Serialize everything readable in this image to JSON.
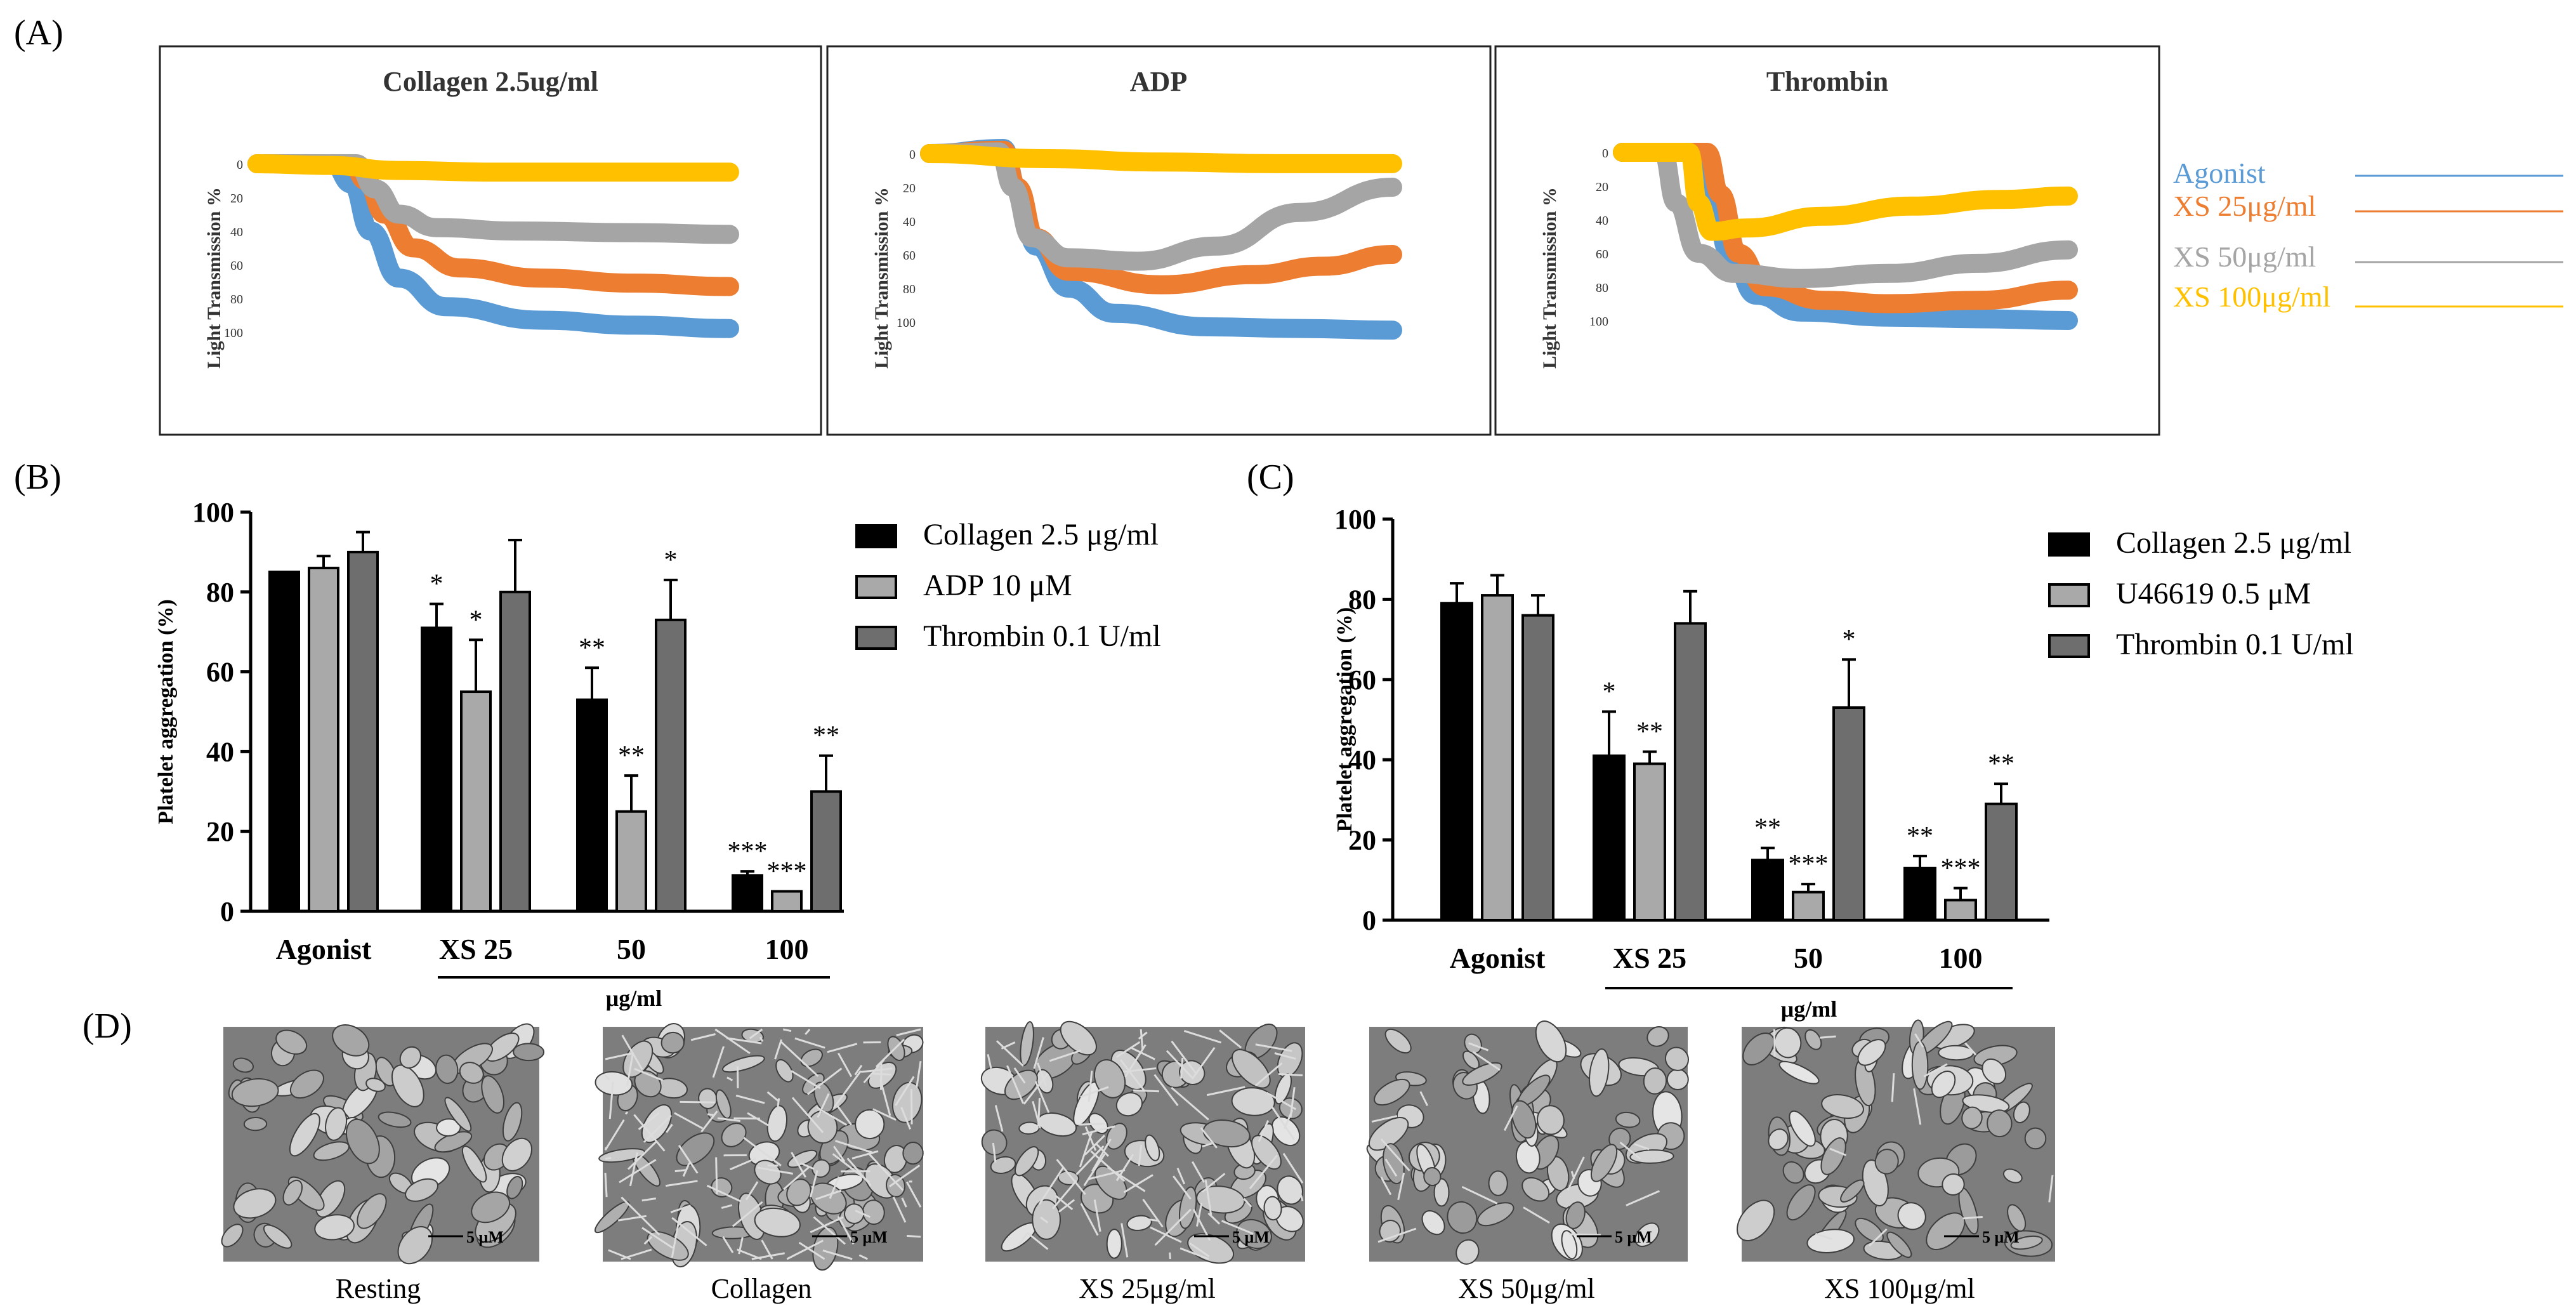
{
  "panel_labels": {
    "a": "(A)",
    "b": "(B)",
    "c": "(C)",
    "d": "(D)"
  },
  "colors": {
    "agonist": "#5B9BD5",
    "xs25": "#ED7D31",
    "xs50": "#A5A5A5",
    "xs100": "#FFC000",
    "bar_black": "#000000",
    "bar_light": "#A9A9A9",
    "bar_dark": "#6E6E6E"
  },
  "chart_data": [
    {
      "type": "line",
      "panel": "A1",
      "title": "Collagen 2.5ug/ml",
      "ylabel": "Light Transmission %",
      "yticks": [
        "0",
        "20",
        "40",
        "60",
        "80",
        "100"
      ],
      "ylim": [
        0,
        130
      ],
      "series": [
        {
          "key": "agonist",
          "points": [
            [
              0,
              0
            ],
            [
              16,
              0
            ],
            [
              20,
              12
            ],
            [
              24,
              40
            ],
            [
              30,
              68
            ],
            [
              40,
              85
            ],
            [
              60,
              93
            ],
            [
              80,
              96
            ],
            [
              100,
              98
            ]
          ]
        },
        {
          "key": "xs25",
          "points": [
            [
              0,
              0
            ],
            [
              20,
              0
            ],
            [
              23,
              10
            ],
            [
              27,
              30
            ],
            [
              33,
              50
            ],
            [
              43,
              62
            ],
            [
              60,
              68
            ],
            [
              80,
              71
            ],
            [
              100,
              73
            ]
          ]
        },
        {
          "key": "xs50",
          "points": [
            [
              0,
              0
            ],
            [
              21,
              0
            ],
            [
              25,
              15
            ],
            [
              30,
              30
            ],
            [
              38,
              38
            ],
            [
              55,
              40
            ],
            [
              80,
              41
            ],
            [
              100,
              42
            ]
          ]
        },
        {
          "key": "xs100",
          "points": [
            [
              0,
              0
            ],
            [
              15,
              1
            ],
            [
              30,
              4
            ],
            [
              50,
              5
            ],
            [
              75,
              5
            ],
            [
              100,
              5
            ]
          ]
        }
      ]
    },
    {
      "type": "line",
      "panel": "A2",
      "title": "ADP",
      "ylabel": "Light Transmission %",
      "yticks": [
        "0",
        "20",
        "40",
        "60",
        "80",
        "100"
      ],
      "ylim": [
        0,
        130
      ],
      "series": [
        {
          "key": "agonist",
          "points": [
            [
              0,
              0
            ],
            [
              16,
              -3
            ],
            [
              19,
              20
            ],
            [
              23,
              55
            ],
            [
              30,
              80
            ],
            [
              40,
              95
            ],
            [
              60,
              103
            ],
            [
              80,
              104
            ],
            [
              100,
              105
            ]
          ]
        },
        {
          "key": "xs25",
          "points": [
            [
              0,
              0
            ],
            [
              16,
              -2
            ],
            [
              19,
              20
            ],
            [
              23,
              50
            ],
            [
              30,
              70
            ],
            [
              50,
              78
            ],
            [
              70,
              72
            ],
            [
              85,
              67
            ],
            [
              100,
              60
            ]
          ]
        },
        {
          "key": "xs50",
          "points": [
            [
              0,
              0
            ],
            [
              15,
              -1
            ],
            [
              18,
              20
            ],
            [
              22,
              50
            ],
            [
              30,
              62
            ],
            [
              45,
              64
            ],
            [
              62,
              55
            ],
            [
              80,
              35
            ],
            [
              100,
              20
            ]
          ]
        },
        {
          "key": "xs100",
          "points": [
            [
              0,
              0
            ],
            [
              25,
              3
            ],
            [
              50,
              5
            ],
            [
              75,
              6
            ],
            [
              100,
              6
            ]
          ]
        }
      ]
    },
    {
      "type": "line",
      "panel": "A3",
      "title": "Thrombin",
      "ylabel": "Light Transmission %",
      "yticks": [
        "0",
        "20",
        "40",
        "60",
        "80",
        "100"
      ],
      "ylim": [
        0,
        130
      ],
      "series": [
        {
          "key": "agonist",
          "points": [
            [
              0,
              0
            ],
            [
              17,
              0
            ],
            [
              20,
              25
            ],
            [
              24,
              60
            ],
            [
              30,
              85
            ],
            [
              40,
              95
            ],
            [
              60,
              98
            ],
            [
              80,
              99
            ],
            [
              100,
              100
            ]
          ]
        },
        {
          "key": "xs25",
          "points": [
            [
              0,
              0
            ],
            [
              19,
              0
            ],
            [
              22,
              25
            ],
            [
              26,
              60
            ],
            [
              32,
              80
            ],
            [
              45,
              88
            ],
            [
              60,
              90
            ],
            [
              80,
              88
            ],
            [
              100,
              82
            ]
          ]
        },
        {
          "key": "xs50",
          "points": [
            [
              0,
              0
            ],
            [
              9,
              0
            ],
            [
              12,
              30
            ],
            [
              17,
              60
            ],
            [
              25,
              72
            ],
            [
              40,
              75
            ],
            [
              60,
              72
            ],
            [
              80,
              66
            ],
            [
              100,
              58
            ]
          ]
        },
        {
          "key": "xs100",
          "points": [
            [
              0,
              0
            ],
            [
              15,
              0
            ],
            [
              17,
              30
            ],
            [
              20,
              47
            ],
            [
              28,
              45
            ],
            [
              45,
              38
            ],
            [
              65,
              32
            ],
            [
              85,
              28
            ],
            [
              100,
              26
            ]
          ]
        }
      ]
    },
    {
      "type": "bar",
      "panel": "B",
      "ylabel": "Platelet aggregation (%)",
      "ylim": [
        0,
        100
      ],
      "yticks": [
        "0",
        "20",
        "40",
        "60",
        "80",
        "100"
      ],
      "categories": [
        "Agonist",
        "XS 25",
        "50",
        "100"
      ],
      "group_label": "μg/ml",
      "series": [
        {
          "name": "Collagen 2.5 μg/ml",
          "values": [
            85,
            71,
            53,
            9
          ],
          "errors": [
            0,
            6,
            8,
            1
          ],
          "stars": [
            "",
            "*",
            "**",
            "***"
          ]
        },
        {
          "name": "ADP 10 μM",
          "values": [
            86,
            55,
            25,
            5
          ],
          "errors": [
            3,
            13,
            9,
            0
          ],
          "stars": [
            "",
            "*",
            "**",
            "***"
          ]
        },
        {
          "name": "Thrombin 0.1 U/ml",
          "values": [
            90,
            80,
            73,
            30
          ],
          "errors": [
            5,
            13,
            10,
            9
          ],
          "stars": [
            "",
            "",
            "*",
            "**"
          ]
        }
      ]
    },
    {
      "type": "bar",
      "panel": "C",
      "ylabel": "Platelet aggregation (%)",
      "ylim": [
        0,
        100
      ],
      "yticks": [
        "0",
        "20",
        "40",
        "60",
        "80",
        "100"
      ],
      "categories": [
        "Agonist",
        "XS 25",
        "50",
        "100"
      ],
      "group_label": "μg/ml",
      "series": [
        {
          "name": "Collagen 2.5 μg/ml",
          "values": [
            79,
            41,
            15,
            13
          ],
          "errors": [
            5,
            11,
            3,
            3
          ],
          "stars": [
            "",
            "*",
            "**",
            "**"
          ]
        },
        {
          "name": "U46619 0.5 μM",
          "values": [
            81,
            39,
            7,
            5
          ],
          "errors": [
            5,
            3,
            2,
            3
          ],
          "stars": [
            "",
            "**",
            "***",
            "***"
          ]
        },
        {
          "name": "Thrombin 0.1 U/ml",
          "values": [
            76,
            74,
            53,
            29
          ],
          "errors": [
            5,
            8,
            12,
            5
          ],
          "stars": [
            "",
            "",
            "*",
            "**"
          ]
        }
      ]
    }
  ],
  "legend_a": [
    {
      "key": "agonist",
      "label": "Agonist"
    },
    {
      "key": "xs25",
      "label": "XS 25μg/ml"
    },
    {
      "key": "xs50",
      "label": "XS 50μg/ml"
    },
    {
      "key": "xs100",
      "label": "XS 100μg/ml"
    }
  ],
  "micrographs": {
    "scale_label": "5 μM",
    "captions": [
      "Resting",
      "Collagen",
      "XS 25μg/ml",
      "XS 50μg/ml",
      "XS 100μg/ml"
    ],
    "activation": [
      0,
      1,
      0.75,
      0.15,
      0.1
    ]
  }
}
